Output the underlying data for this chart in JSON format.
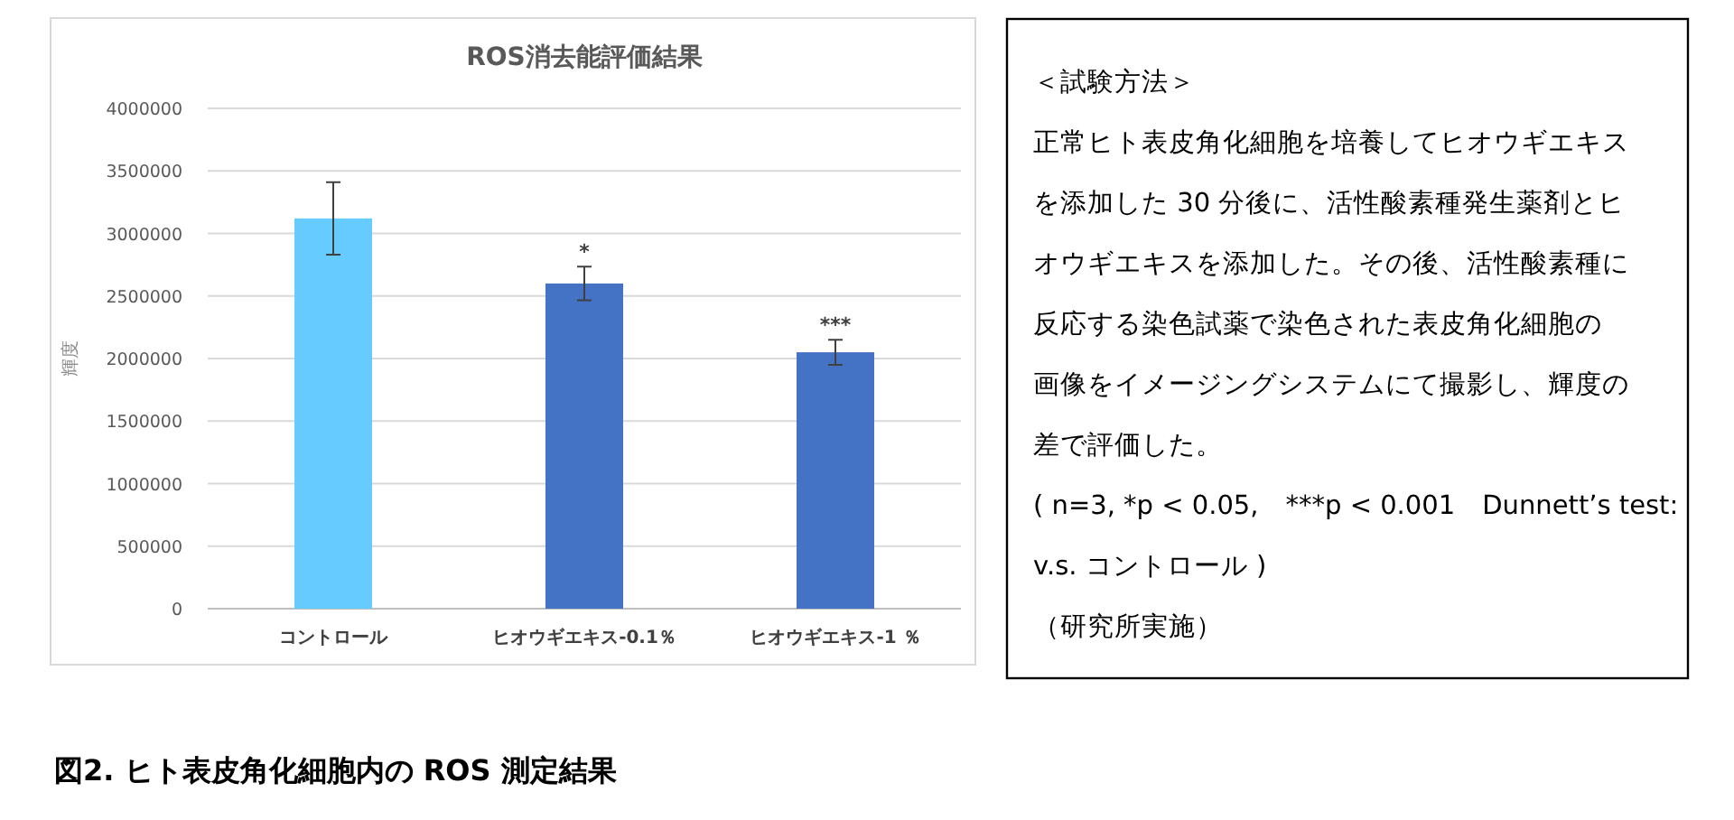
{
  "chart_data": [
    {
      "type": "bar",
      "title": "ROS消去能評価結果",
      "ylabel": "輝度",
      "categories": [
        "コントロール",
        "ヒオウギエキス-0.1％",
        "ヒオウギエキス-1 ％"
      ],
      "values": [
        3120000,
        2600000,
        2050000
      ],
      "colors": [
        "#66ccff",
        "#4472c4",
        "#4472c4"
      ],
      "errors": [
        290000,
        135000,
        100000
      ],
      "ylim": [
        0,
        4000000
      ],
      "yticks": [
        0,
        500000,
        1000000,
        1500000,
        2000000,
        2500000,
        3000000,
        3500000,
        4000000
      ],
      "grid": "y",
      "annotations": [
        {
          "text": "*",
          "x": "ヒオウギエキス-0.1％",
          "y": 2800000
        },
        {
          "text": "***",
          "x": "ヒオウギエキス-1 ％",
          "y": 2220000
        },
        "図2. ヒト表皮角化細胞内の ROS 測定結果"
      ]
    },
    {
      "type": "other",
      "annotations": [
        "＜試験方法＞",
        "正常ヒト表皮角化細胞を培養してヒオウギエキス",
        "を添加した 30 分後に、活性酸素種発生薬剤とヒ",
        "オウギエキスを添加した。その後、活性酸素種に",
        "反応する染色試薬で染色された表皮角化細胞の",
        "画像をイメージングシステムにて撮影し、輝度の",
        "差で評価した。",
        "( n=3, *p < 0.05,　***p < 0.001　Dunnett’s test:",
        "v.s. コントロール )",
        "（研究所実施）"
      ]
    }
  ]
}
